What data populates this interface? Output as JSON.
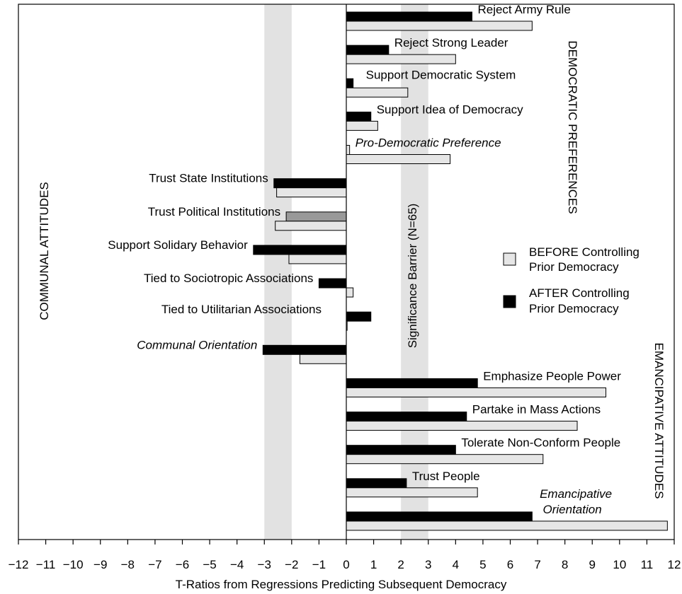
{
  "chart_data": {
    "type": "bar",
    "orientation": "horizontal",
    "xlabel": "T-Ratios from Regressions Predicting Subsequent Democracy",
    "xlim": [
      -12,
      12
    ],
    "xticks": [
      -12,
      -11,
      -10,
      -9,
      -8,
      -7,
      -6,
      -5,
      -4,
      -3,
      -2,
      -1,
      0,
      1,
      2,
      3,
      4,
      5,
      6,
      7,
      8,
      9,
      10,
      11,
      12
    ],
    "grid": false,
    "legend": {
      "placement": "right",
      "entries": [
        {
          "line1": "BEFORE Controlling",
          "line2": "Prior Democracy",
          "color": "#e6e6e6"
        },
        {
          "line1": "AFTER Controlling",
          "line2": "Prior Democracy",
          "color": "#000000"
        }
      ]
    },
    "bands": [
      {
        "from": -3,
        "to": -2,
        "color": "#e2e2e2"
      },
      {
        "from": 2,
        "to": 3,
        "color": "#e2e2e2",
        "label": "Significance Barrier (N=65)"
      }
    ],
    "group_labels": [
      {
        "text": "DEMOCRATIC PREFERENCES"
      },
      {
        "text": "COMMUNAL ATTITUDES"
      },
      {
        "text": "EMANCIPATIVE ATTITUDES"
      }
    ],
    "items": [
      {
        "label": "Reject Army Rule",
        "italic": false,
        "after": 4.6,
        "before": 6.8
      },
      {
        "label": "Reject Strong Leader",
        "italic": false,
        "after": 1.55,
        "before": 4.0
      },
      {
        "label": "Support Democratic System",
        "italic": false,
        "after": 0.25,
        "before": 2.25
      },
      {
        "label": "Support Idea of Democracy",
        "italic": false,
        "after": 0.9,
        "before": 1.15
      },
      {
        "label": "Pro-Democratic Preference",
        "italic": true,
        "after": 0,
        "before": 3.8,
        "before_small": 0.12
      },
      {
        "label": "Trust State Institutions",
        "italic": false,
        "after": -2.65,
        "before": -2.55
      },
      {
        "label": "Trust Political Institutions",
        "italic": false,
        "after": -2.2,
        "before": -2.6,
        "after_color": "#999999"
      },
      {
        "label": "Support Solidary Behavior",
        "italic": false,
        "after": -3.4,
        "before": -2.1
      },
      {
        "label": "Tied to Sociotropic Associations",
        "italic": false,
        "after": -1.0,
        "before": 0.25
      },
      {
        "label": "Tied to Utilitarian Associations",
        "italic": false,
        "after": 0.9,
        "before": 0.03
      },
      {
        "label": "Communal Orientation",
        "italic": true,
        "after": -3.05,
        "before": -1.7
      },
      {
        "label": "Emphasize People Power",
        "italic": false,
        "after": 4.8,
        "before": 9.5
      },
      {
        "label": "Partake in Mass Actions",
        "italic": false,
        "after": 4.4,
        "before": 8.45
      },
      {
        "label": "Tolerate Non-Conform People",
        "italic": false,
        "after": 4.0,
        "before": 7.2
      },
      {
        "label": "Trust People",
        "italic": false,
        "after": 2.2,
        "before": 4.8
      },
      {
        "label": "Emancipative",
        "label2": "Orientation",
        "italic": true,
        "after": 6.8,
        "before": 11.75
      }
    ]
  }
}
